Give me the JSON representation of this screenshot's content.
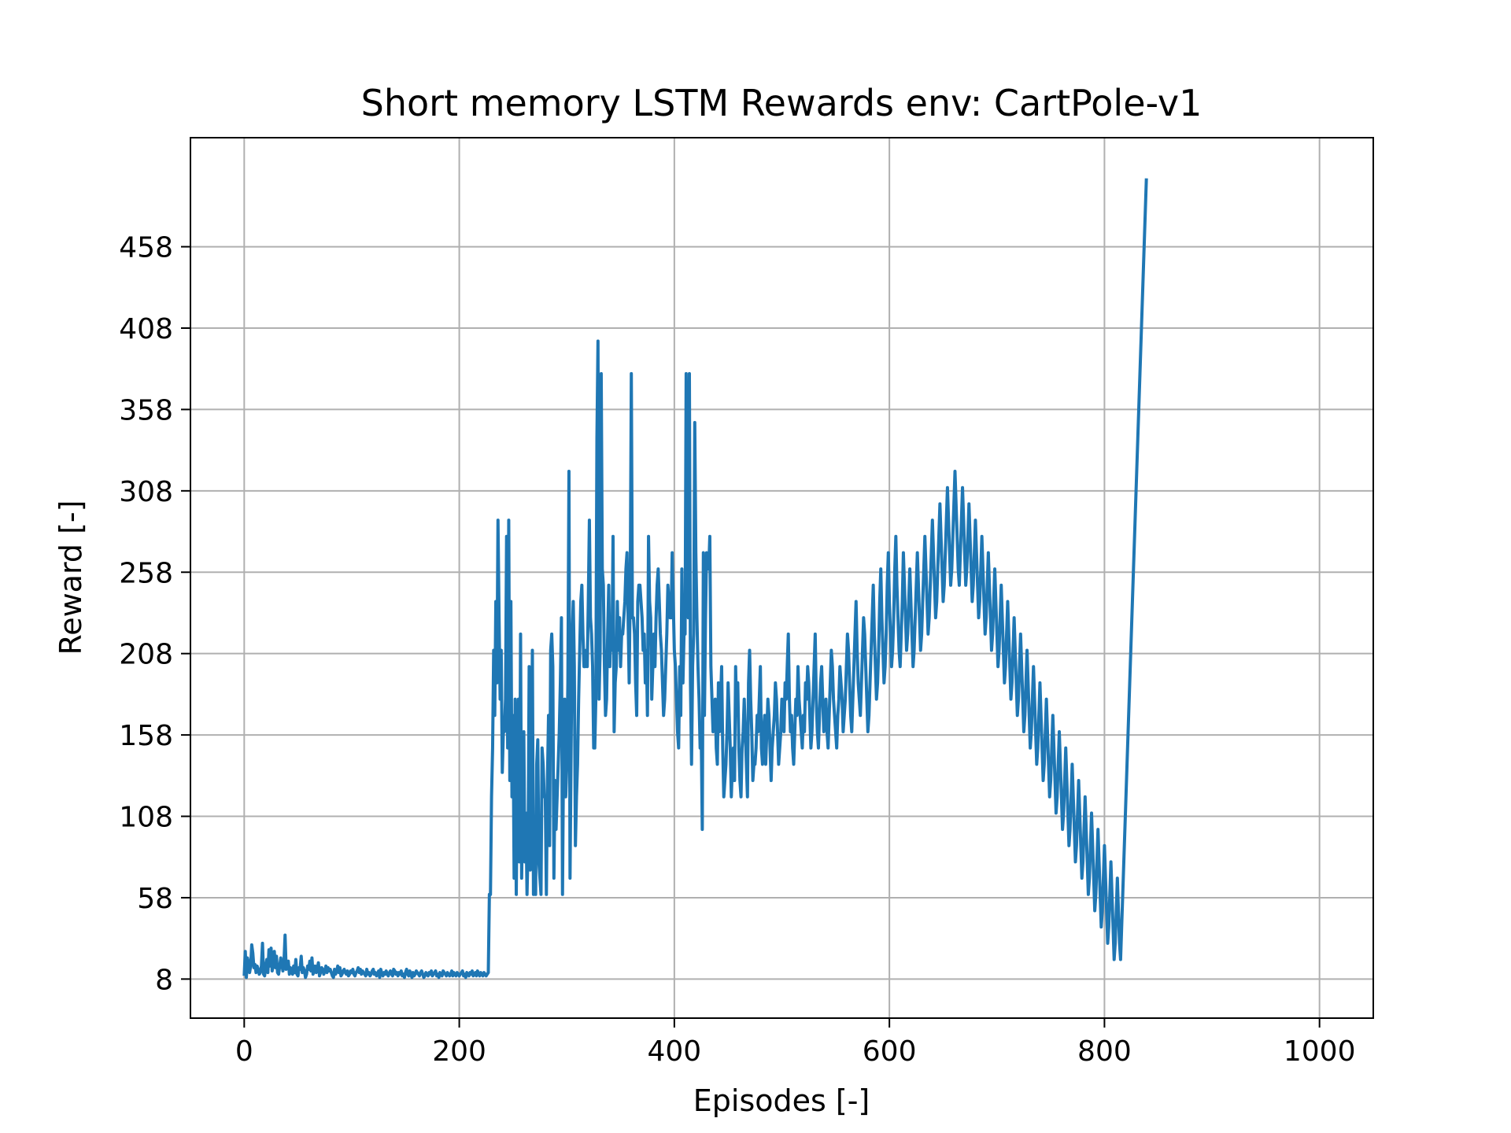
{
  "chart_data": {
    "type": "line",
    "title": "Short memory LSTM Rewards env: CartPole-v1",
    "xlabel": "Episodes [-]",
    "ylabel": "Reward [-]",
    "xlim": [
      -50,
      1050
    ],
    "ylim": [
      -16,
      525
    ],
    "x_ticks": [
      0,
      200,
      400,
      600,
      800,
      1000
    ],
    "y_ticks": [
      8,
      58,
      108,
      158,
      208,
      258,
      308,
      358,
      408,
      458
    ],
    "grid": true,
    "legend": "none",
    "line_color": "#1f77b4",
    "series": [
      {
        "episode_step": 1,
        "episode_start": 0,
        "values": [
          10,
          25,
          9,
          21,
          18,
          12,
          16,
          29,
          24,
          15,
          17,
          12,
          16,
          14,
          11,
          12,
          16,
          30,
          11,
          10,
          16,
          20,
          12,
          26,
          16,
          27,
          13,
          18,
          25,
          15,
          22,
          12,
          11,
          16,
          21,
          17,
          13,
          19,
          35,
          14,
          16,
          19,
          11,
          15,
          13,
          11,
          16,
          12,
          20,
          11,
          10,
          15,
          14,
          22,
          12,
          15,
          13,
          9,
          11,
          16,
          14,
          19,
          13,
          21,
          11,
          13,
          16,
          12,
          15,
          18,
          10,
          12,
          15,
          14,
          11,
          13,
          16,
          12,
          15,
          13,
          14,
          12,
          10,
          9,
          14,
          11,
          13,
          16,
          12,
          15,
          10,
          11,
          13,
          14,
          12,
          11,
          13,
          10,
          11,
          13,
          12,
          14,
          11,
          10,
          12,
          13,
          15,
          12,
          14,
          11,
          13,
          12,
          11,
          10,
          14,
          11,
          12,
          10,
          11,
          13,
          14,
          11,
          12,
          10,
          11,
          13,
          9,
          14,
          11,
          10,
          12,
          11,
          13,
          11,
          10,
          12,
          13,
          11,
          10,
          14,
          13,
          11,
          12,
          10,
          12,
          11,
          13,
          10,
          11,
          9,
          12,
          14,
          11,
          10,
          13,
          11,
          9,
          12,
          10,
          11,
          13,
          12,
          11,
          10,
          12,
          13,
          11,
          9,
          10,
          12,
          11,
          10,
          12,
          11,
          13,
          10,
          11,
          12,
          13,
          10,
          11,
          9,
          12,
          11,
          10,
          13,
          12,
          11,
          10,
          12,
          11,
          10,
          11,
          13,
          10,
          12,
          11,
          10,
          12,
          11,
          10,
          11,
          12,
          13,
          10,
          11,
          9,
          12,
          11,
          10,
          12,
          11,
          13,
          10,
          11,
          12,
          10,
          13,
          11,
          10,
          12,
          11,
          10,
          12,
          11,
          10,
          11,
          12,
          60,
          60,
          120,
          150,
          210,
          170,
          240,
          190,
          290,
          230,
          180,
          210,
          135,
          160,
          160,
          180,
          280,
          150,
          290,
          130,
          240,
          120,
          170,
          70,
          180,
          60,
          140,
          180,
          80,
          220,
          70,
          120,
          160,
          80,
          110,
          60,
          90,
          200,
          75,
          130,
          210,
          60,
          90,
          60,
          140,
          155,
          80,
          70,
          60,
          150,
          140,
          120,
          120,
          60,
          130,
          170,
          90,
          210,
          220,
          200,
          70,
          130,
          100,
          120,
          140,
          160,
          190,
          230,
          60,
          150,
          180,
          120,
          140,
          190,
          320,
          70,
          150,
          220,
          240,
          200,
          90,
          120,
          140,
          180,
          210,
          240,
          250,
          220,
          200,
          200,
          210,
          200,
          240,
          290,
          230,
          220,
          200,
          150,
          150,
          180,
          340,
          400,
          180,
          210,
          380,
          260,
          250,
          200,
          170,
          180,
          220,
          250,
          200,
          230,
          210,
          280,
          160,
          190,
          200,
          240,
          210,
          230,
          200,
          220,
          220,
          230,
          240,
          260,
          270,
          230,
          190,
          250,
          380,
          230,
          230,
          220,
          190,
          170,
          240,
          250,
          250,
          240,
          230,
          210,
          220,
          190,
          210,
          170,
          280,
          240,
          230,
          180,
          200,
          220,
          200,
          230,
          250,
          260,
          240,
          220,
          210,
          190,
          170,
          180,
          200,
          220,
          250,
          240,
          230,
          230,
          270,
          240,
          210,
          200,
          180,
          160,
          150,
          200,
          170,
          260,
          190,
          220,
          220,
          380,
          260,
          230,
          380,
          190,
          140,
          200,
          220,
          350,
          270,
          230,
          200,
          180,
          150,
          160,
          100,
          270,
          170,
          230,
          270,
          260,
          260,
          280,
          200,
          180,
          160,
          170,
          180,
          150,
          140,
          190,
          160,
          180,
          200,
          150,
          120,
          130,
          140,
          160,
          190,
          170,
          150,
          120,
          140,
          150,
          130,
          200,
          170,
          190,
          150,
          130,
          120,
          150,
          160,
          180,
          160,
          140,
          120,
          190,
          210,
          180,
          160,
          130,
          140,
          140,
          150,
          170,
          160,
          180,
          200,
          150,
          140,
          160,
          170,
          140,
          160,
          180,
          170,
          150,
          130,
          150,
          160,
          170,
          190,
          180,
          160,
          140,
          150,
          160,
          180,
          170,
          160,
          190,
          180,
          200,
          220,
          180,
          160,
          170,
          150,
          140,
          160,
          180,
          170,
          200,
          180,
          170,
          160,
          150,
          170,
          160,
          190,
          180,
          200,
          190,
          170,
          150,
          160,
          180,
          200,
          220,
          180,
          160,
          150,
          170,
          190,
          200,
          180,
          160,
          170,
          180,
          160,
          150,
          170,
          190,
          210,
          200,
          180,
          170,
          160,
          150,
          170,
          180,
          200,
          190,
          180,
          160,
          170,
          180,
          200,
          220,
          210,
          190,
          170,
          160,
          180,
          200,
          220,
          240,
          210,
          190,
          180,
          170,
          190,
          210,
          230,
          220,
          200,
          180,
          160,
          170,
          190,
          210,
          230,
          250,
          220,
          200,
          180,
          190,
          210,
          240,
          260,
          230,
          210,
          190,
          200,
          220,
          250,
          270,
          240,
          220,
          200,
          210,
          230,
          260,
          280,
          250,
          230,
          210,
          200,
          220,
          240,
          270,
          250,
          230,
          210,
          220,
          240,
          260,
          240,
          220,
          200,
          210,
          230,
          250,
          270,
          250,
          230,
          210,
          220,
          240,
          260,
          280,
          260,
          240,
          220,
          230,
          250,
          270,
          290,
          270,
          250,
          230,
          240,
          260,
          280,
          300,
          280,
          260,
          240,
          250,
          270,
          290,
          310,
          290,
          270,
          250,
          260,
          280,
          300,
          320,
          300,
          280,
          260,
          250,
          270,
          290,
          310,
          290,
          270,
          250,
          260,
          280,
          300,
          280,
          260,
          240,
          250,
          270,
          290,
          270,
          250,
          230,
          240,
          260,
          280,
          260,
          240,
          220,
          230,
          250,
          270,
          250,
          230,
          210,
          220,
          240,
          260,
          240,
          220,
          200,
          210,
          230,
          250,
          230,
          210,
          190,
          200,
          220,
          240,
          220,
          200,
          180,
          190,
          210,
          230,
          210,
          190,
          170,
          180,
          200,
          220,
          200,
          180,
          160,
          170,
          190,
          210,
          190,
          170,
          150,
          160,
          180,
          200,
          180,
          160,
          140,
          150,
          170,
          190,
          170,
          150,
          130,
          140,
          160,
          180,
          160,
          140,
          120,
          130,
          150,
          170,
          150,
          130,
          110,
          120,
          140,
          160,
          140,
          120,
          100,
          110,
          130,
          150,
          130,
          110,
          90,
          100,
          120,
          140,
          120,
          100,
          80,
          90,
          110,
          130,
          110,
          90,
          70,
          80,
          100,
          120,
          100,
          80,
          60,
          70,
          90,
          110,
          90,
          70,
          50,
          60,
          80,
          100,
          80,
          60,
          40,
          50,
          70,
          90,
          70,
          50,
          30,
          40,
          60,
          80,
          60,
          40,
          20,
          30,
          50,
          70,
          50,
          30,
          20,
          40,
          60,
          80,
          100,
          120,
          140,
          160,
          180,
          200,
          220,
          240,
          260,
          280,
          300,
          320,
          340,
          360,
          380,
          400,
          420,
          440,
          460,
          480,
          500
        ]
      }
    ]
  }
}
